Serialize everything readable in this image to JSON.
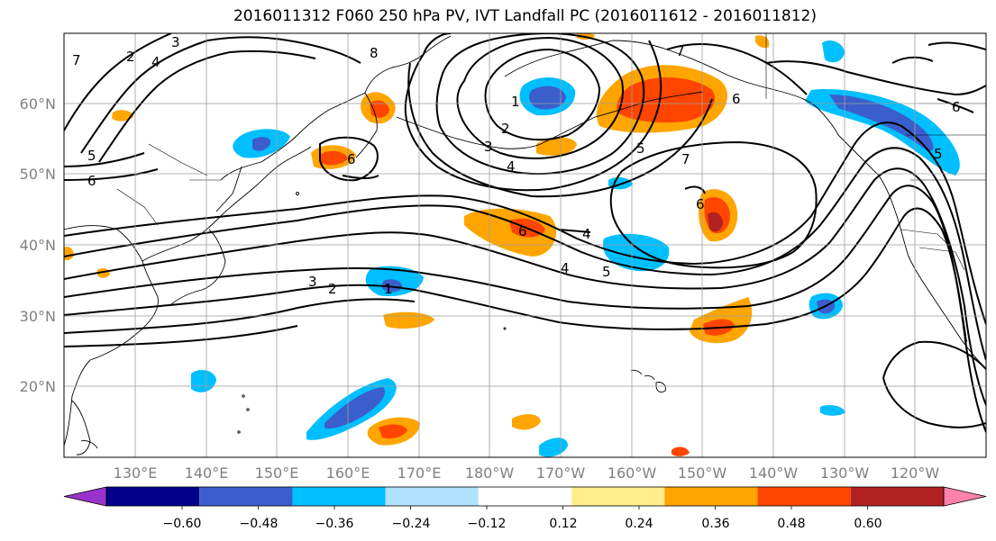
{
  "title": "2016011312 F060 250 hPa PV, IVT Landfall PC (2016011612 - 2016011812)",
  "lat_labels": [
    "60°N",
    "50°N",
    "40°N",
    "30°N",
    "20°N"
  ],
  "lon_labels": [
    "130°E",
    "140°E",
    "150°E",
    "160°E",
    "170°E",
    "180°W",
    "170°W",
    "160°W",
    "150°W",
    "140°W",
    "130°W",
    "120°W"
  ],
  "contour_labels": [
    "1",
    "2",
    "3",
    "4",
    "5",
    "6",
    "7",
    "8"
  ],
  "colorbar": {
    "ticks": [
      "−0.60",
      "−0.48",
      "−0.36",
      "−0.24",
      "−0.12",
      "0.12",
      "0.24",
      "0.36",
      "0.48",
      "0.60"
    ],
    "colors": [
      "#9932cc",
      "#00008b",
      "#3a5fcd",
      "#00bfff",
      "#b0e2ff",
      "#ffffff",
      "#ffec8b",
      "#ffa500",
      "#ff4500",
      "#b22222",
      "#ff82ab"
    ]
  }
}
